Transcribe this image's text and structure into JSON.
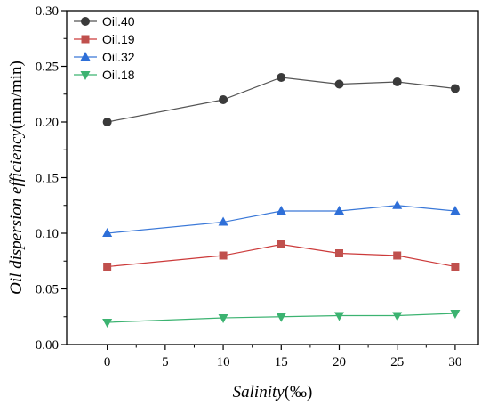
{
  "chart_data": {
    "type": "line",
    "xlabel_main": "Salinity",
    "xlabel_unit": "(‰)",
    "ylabel_main": "Oil dispersion efficiency",
    "ylabel_unit": "(mm/min)",
    "xlim": [
      -3.5,
      32
    ],
    "ylim": [
      0,
      0.3
    ],
    "xticks": [
      0,
      5,
      10,
      15,
      20,
      25,
      30
    ],
    "xtick_labels": [
      "0",
      "5",
      "10",
      "15",
      "20",
      "25",
      "30"
    ],
    "yticks": [
      0,
      0.05,
      0.1,
      0.15,
      0.2,
      0.25,
      0.3
    ],
    "ytick_labels": [
      "0.00",
      "0.05",
      "0.10",
      "0.15",
      "0.20",
      "0.25",
      "0.30"
    ],
    "grid": false,
    "legend_position": "top-left",
    "x": [
      0,
      10,
      15,
      20,
      25,
      30
    ],
    "series": [
      {
        "name": "Oil.40",
        "values": [
          0.2,
          0.22,
          0.24,
          0.234,
          0.236,
          0.23
        ],
        "color": "#3a3a3a",
        "marker": "circle",
        "line_color": "#555555"
      },
      {
        "name": "Oil.19",
        "values": [
          0.07,
          0.08,
          0.09,
          0.082,
          0.08,
          0.07
        ],
        "color": "#c0504d",
        "marker": "square",
        "line_color": "#cc3a3a"
      },
      {
        "name": "Oil.32",
        "values": [
          0.1,
          0.11,
          0.12,
          0.12,
          0.125,
          0.12
        ],
        "color": "#2e6fd8",
        "marker": "triangle-up",
        "line_color": "#3a78d8"
      },
      {
        "name": "Oil.18",
        "values": [
          0.02,
          0.024,
          0.025,
          0.026,
          0.026,
          0.028
        ],
        "color": "#3cb371",
        "marker": "triangle-down",
        "line_color": "#3cb371"
      }
    ]
  }
}
